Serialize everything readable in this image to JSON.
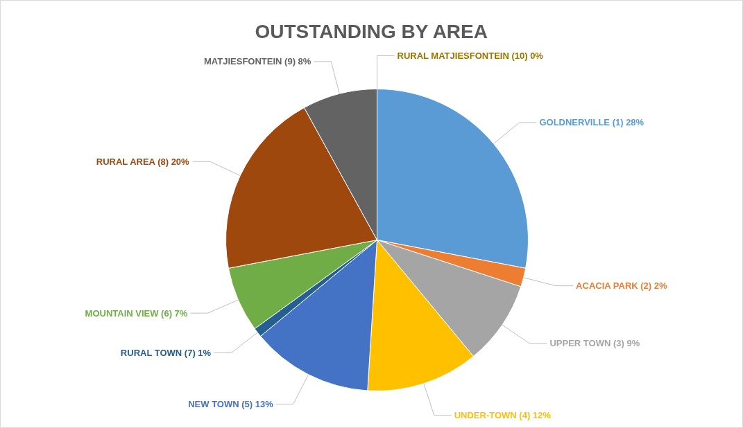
{
  "chart_data": {
    "type": "pie",
    "title": "OUTSTANDING BY AREA",
    "categories": [
      "GOLDNERVILLE (1)",
      "ACACIA PARK (2)",
      "UPPER TOWN (3)",
      "UNDER-TOWN (4)",
      "NEW TOWN (5)",
      "RURAL TOWN (7)",
      "MOUNTAIN VIEW (6)",
      "RURAL AREA (8)",
      "MATJIESFONTEIN (9)",
      "RURAL MATJIESFONTEIN (10)"
    ],
    "values": [
      28,
      2,
      9,
      12,
      13,
      1,
      7,
      20,
      8,
      0
    ],
    "colors": [
      "#5b9bd5",
      "#ed7d31",
      "#a5a5a5",
      "#ffc000",
      "#4472c4",
      "#255e91",
      "#70ad47",
      "#9e480e",
      "#636363",
      "#997300"
    ],
    "value_labels": [
      "28%",
      "2%",
      "9%",
      "12%",
      "13%",
      "1%",
      "7%",
      "20%",
      "8%",
      "0%"
    ]
  }
}
